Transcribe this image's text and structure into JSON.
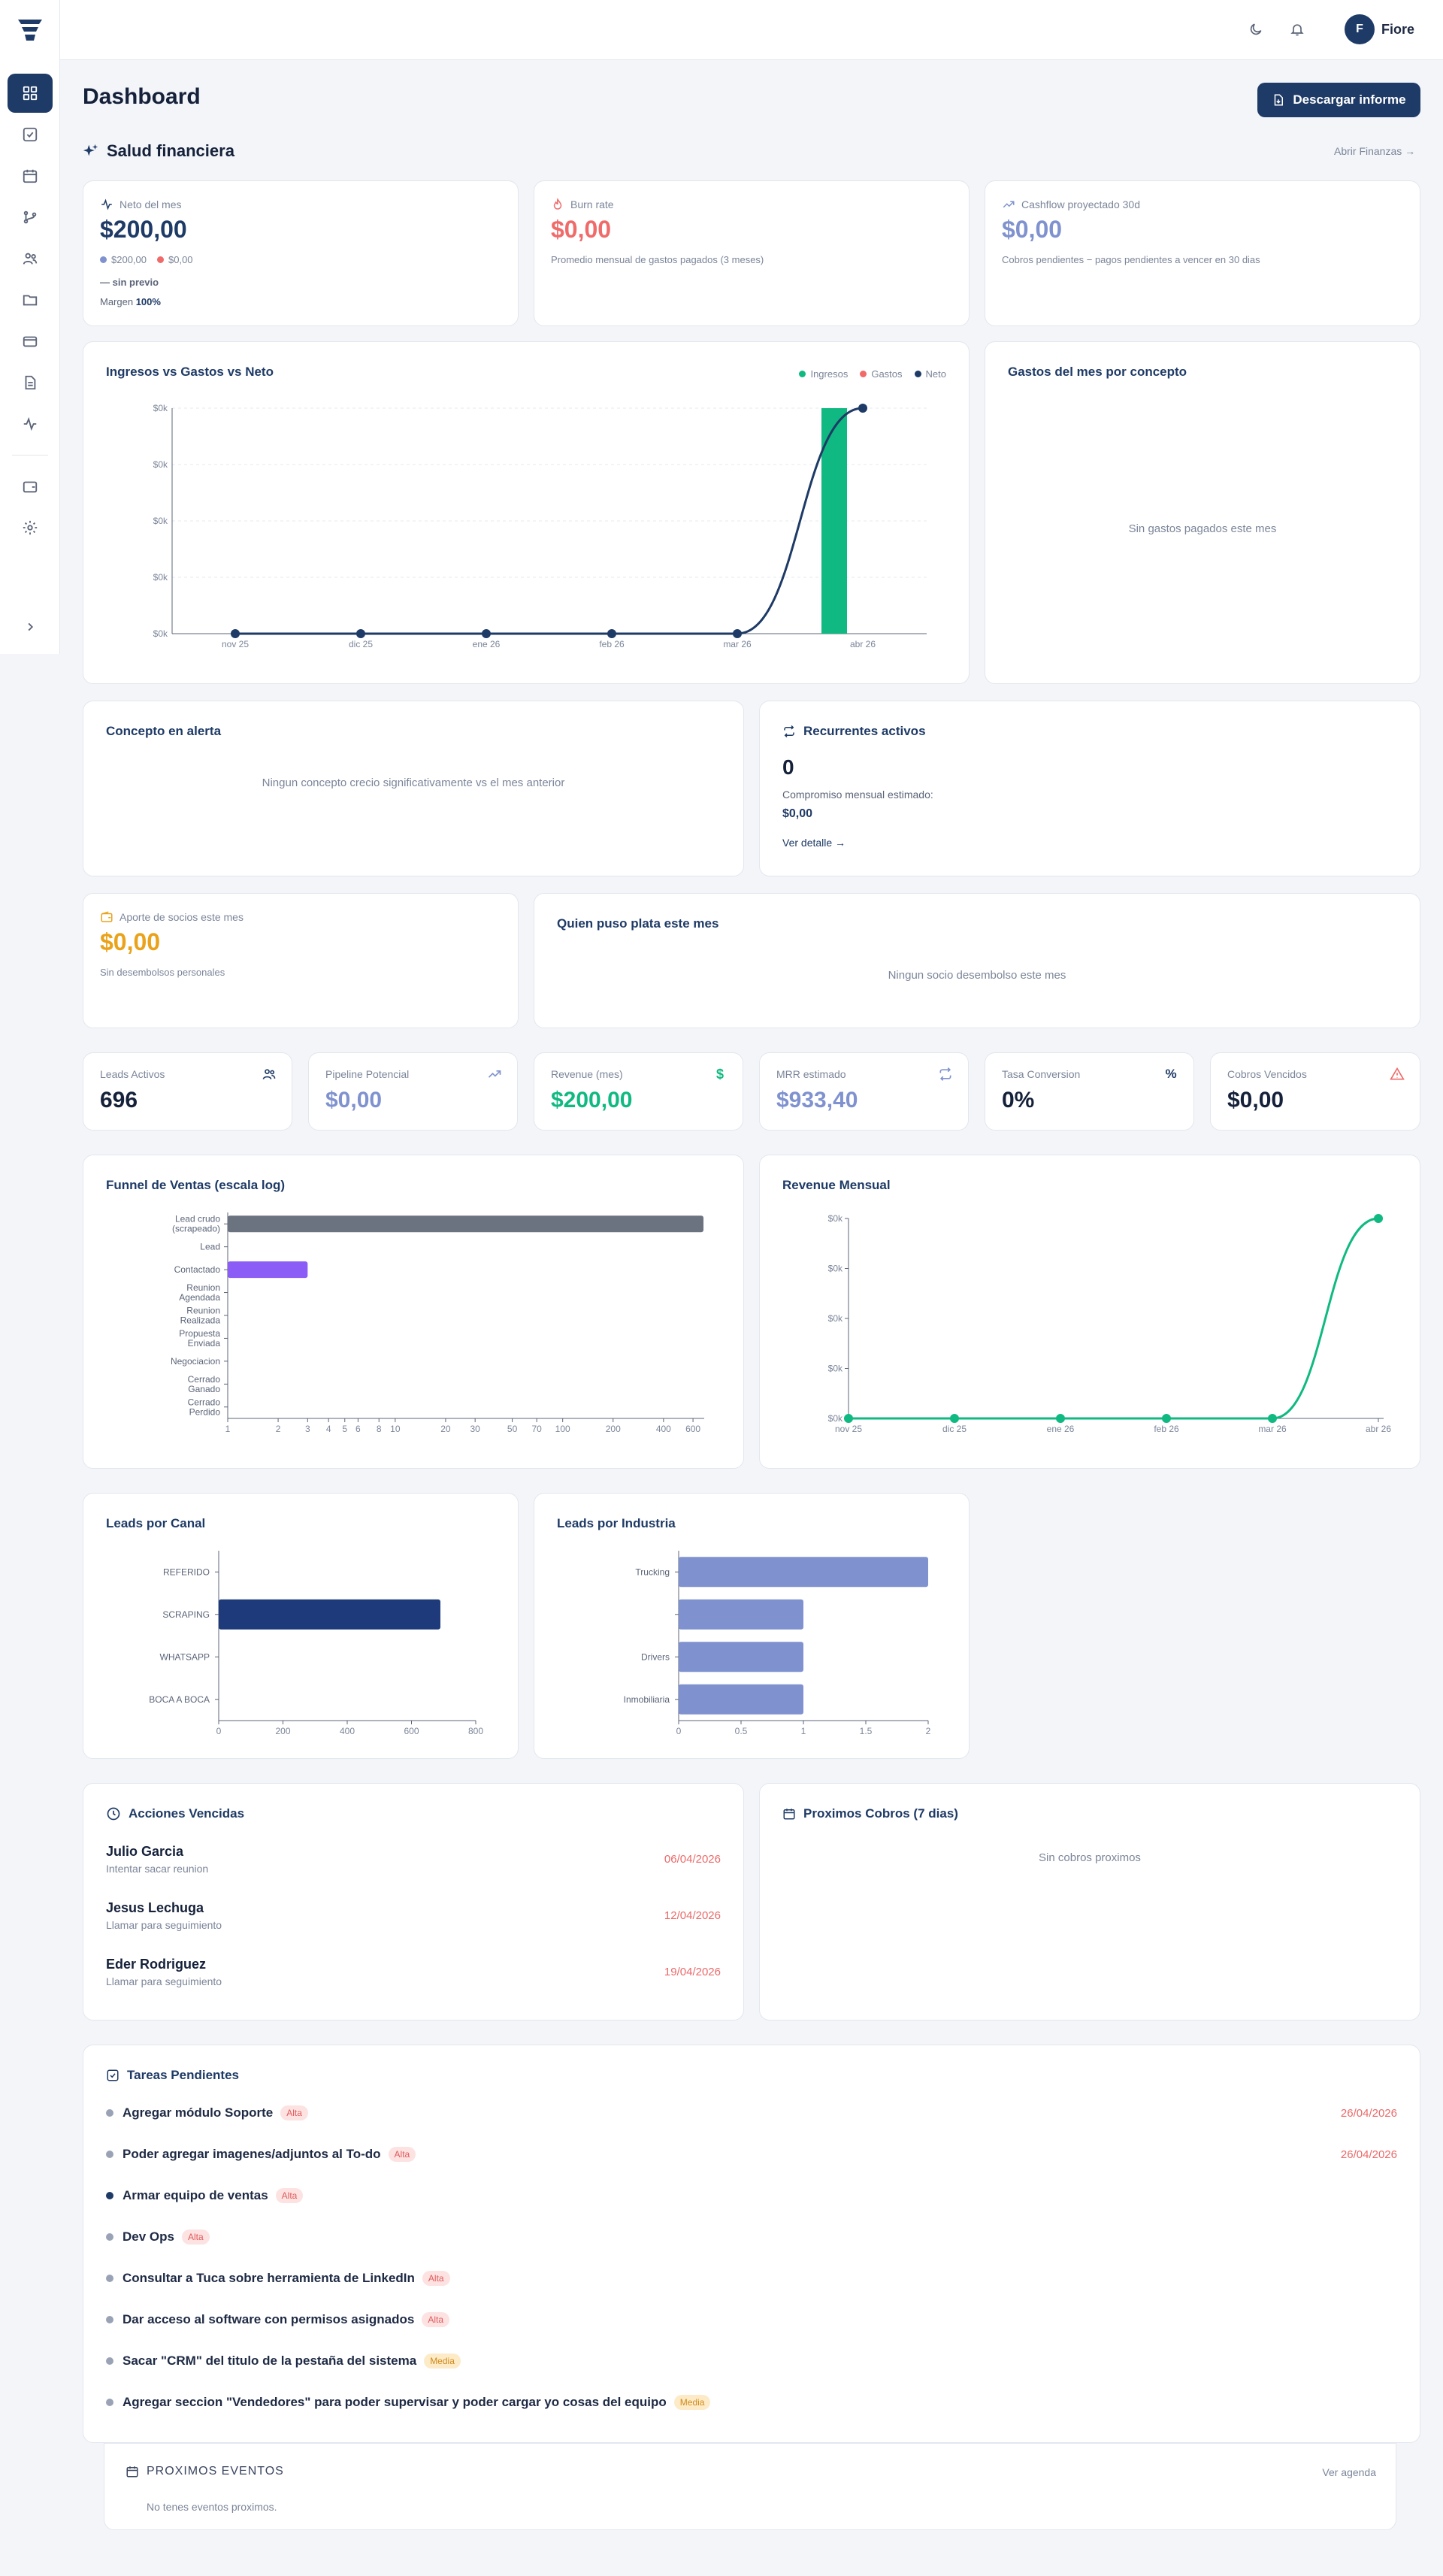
{
  "topbar": {
    "username": "Fiore",
    "avatar_initial": "F"
  },
  "header": {
    "title": "Dashboard",
    "download_label": "Descargar informe"
  },
  "finance": {
    "section_title": "Salud financiera",
    "open_link": "Abrir Finanzas →",
    "neto": {
      "label": "Neto del mes",
      "value": "$200,00",
      "ing": "$200,00",
      "gas": "$0,00",
      "prev": "— sin previo",
      "margin_label": "Margen",
      "margin_value": "100%"
    },
    "burn": {
      "label": "Burn rate",
      "value": "$0,00",
      "note": "Promedio mensual de gastos pagados (3 meses)"
    },
    "cash": {
      "label": "Cashflow proyectado 30d",
      "value": "$0,00",
      "note": "Cobros pendientes − pagos pendientes a vencer en 30 dias"
    }
  },
  "colors": {
    "ingresos": "#10b981",
    "gastos": "#f06a6a",
    "neto": "#1e3a66",
    "accent": "#1e3a66",
    "purple": "#8b5cf6",
    "periwinkle": "#7f92cf"
  },
  "ivg_chart": {
    "title": "Ingresos vs Gastos vs Neto",
    "legend": [
      "Ingresos",
      "Gastos",
      "Neto"
    ],
    "y_ticks": [
      "$0k",
      "$0k",
      "$0k",
      "$0k",
      "$0k"
    ],
    "categories": [
      "nov 25",
      "dic 25",
      "ene 26",
      "feb 26",
      "mar 26",
      "abr 26"
    ]
  },
  "gastos_concepto": {
    "title": "Gastos del mes por concepto",
    "empty": "Sin gastos pagados este mes"
  },
  "concepto_alerta": {
    "title": "Concepto en alerta",
    "empty": "Ningun concepto crecio significativamente vs el mes anterior"
  },
  "recurrentes": {
    "title": "Recurrentes activos",
    "count": "0",
    "label": "Compromiso mensual estimado:",
    "amount": "$0,00",
    "link": "Ver detalle →"
  },
  "aporte": {
    "label": "Aporte de socios este mes",
    "value": "$0,00",
    "note": "Sin desembolsos personales"
  },
  "quien_puso": {
    "title": "Quien puso plata este mes",
    "empty": "Ningun socio desembolso este mes"
  },
  "kpis": [
    {
      "label": "Leads Activos",
      "value": "696"
    },
    {
      "label": "Pipeline Potencial",
      "value": "$0,00"
    },
    {
      "label": "Revenue (mes)",
      "value": "$200,00"
    },
    {
      "label": "MRR estimado",
      "value": "$933,40"
    },
    {
      "label": "Tasa Conversion",
      "value": "0%"
    },
    {
      "label": "Cobros Vencidos",
      "value": "$0,00"
    }
  ],
  "chart_data": [
    {
      "type": "bar",
      "title": "Ingresos vs Gastos vs Neto",
      "categories": [
        "nov 25",
        "dic 25",
        "ene 26",
        "feb 26",
        "mar 26",
        "abr 26"
      ],
      "series": [
        {
          "name": "Ingresos",
          "values": [
            0,
            0,
            0,
            0,
            0,
            200
          ]
        },
        {
          "name": "Gastos",
          "values": [
            0,
            0,
            0,
            0,
            0,
            0
          ]
        },
        {
          "name": "Neto",
          "values": [
            0,
            0,
            0,
            0,
            0,
            200
          ]
        }
      ],
      "legend": "top-right"
    },
    {
      "type": "bar",
      "title": "Funnel de Ventas (escala log)",
      "orientation": "horizontal",
      "log_scale": true,
      "categories": [
        "Lead crudo (scrapeado)",
        "Lead",
        "Contactado",
        "Reunion Agendada",
        "Reunion Realizada",
        "Propuesta Enviada",
        "Negociacion",
        "Cerrado Ganado",
        "Cerrado Perdido"
      ],
      "values": [
        693,
        0,
        3,
        0,
        0,
        0,
        0,
        0,
        0
      ],
      "xticks": [
        "1",
        "2",
        "3",
        "4",
        "5",
        "6",
        "8",
        "10",
        "20",
        "30",
        "50",
        "70",
        "100",
        "200",
        "400",
        "600"
      ],
      "xlim": [
        1,
        700
      ]
    },
    {
      "type": "line",
      "title": "Revenue Mensual",
      "categories": [
        "nov 25",
        "dic 25",
        "ene 26",
        "feb 26",
        "mar 26",
        "abr 26"
      ],
      "values": [
        0,
        0,
        0,
        0,
        0,
        200
      ],
      "y_ticks": [
        "$0k",
        "$0k",
        "$0k",
        "$0k",
        "$0k"
      ]
    },
    {
      "type": "bar",
      "title": "Leads por Canal",
      "orientation": "horizontal",
      "categories": [
        "REFERIDO",
        "SCRAPING",
        "WHATSAPP",
        "BOCA A BOCA"
      ],
      "values": [
        0,
        690,
        0,
        0
      ],
      "xticks": [
        "0",
        "200",
        "400",
        "600",
        "800"
      ],
      "xlim": [
        0,
        800
      ]
    },
    {
      "type": "bar",
      "title": "Leads por Industria",
      "orientation": "horizontal",
      "categories": [
        "Trucking",
        "",
        "Drivers",
        "Inmobiliaria"
      ],
      "values": [
        2,
        1,
        1,
        1
      ],
      "xticks": [
        "0",
        "0.5",
        "1",
        "1.5",
        "2"
      ],
      "xlim": [
        0,
        2
      ]
    }
  ],
  "acciones": {
    "title": "Acciones Vencidas",
    "items": [
      {
        "name": "Julio Garcia",
        "sub": "Intentar sacar reunion",
        "date": "06/04/2026"
      },
      {
        "name": "Jesus Lechuga",
        "sub": "Llamar para seguimiento",
        "date": "12/04/2026"
      },
      {
        "name": "Eder Rodriguez",
        "sub": "Llamar para seguimiento",
        "date": "19/04/2026"
      }
    ]
  },
  "cobros": {
    "title": "Proximos Cobros (7 dias)",
    "empty": "Sin cobros proximos"
  },
  "tareas": {
    "title": "Tareas Pendientes",
    "items": [
      {
        "name": "Agregar módulo Soporte",
        "badge": "Alta",
        "date": "26/04/2026"
      },
      {
        "name": "Poder agregar imagenes/adjuntos al To-do",
        "badge": "Alta",
        "date": "26/04/2026"
      },
      {
        "name": "Armar equipo de ventas",
        "badge": "Alta",
        "date": ""
      },
      {
        "name": "Dev Ops",
        "badge": "Alta",
        "date": ""
      },
      {
        "name": "Consultar a Tuca sobre herramienta de LinkedIn",
        "badge": "Alta",
        "date": ""
      },
      {
        "name": "Dar acceso al software con permisos asignados",
        "badge": "Alta",
        "date": ""
      },
      {
        "name": "Sacar \"CRM\" del titulo de la pestaña del sistema",
        "badge": "Media",
        "date": ""
      },
      {
        "name": "Agregar seccion \"Vendedores\" para poder supervisar y poder cargar yo cosas del equipo",
        "badge": "Media",
        "date": ""
      }
    ]
  },
  "eventos": {
    "title": "PROXIMOS EVENTOS",
    "link": "Ver agenda",
    "empty": "No tenes eventos proximos."
  }
}
